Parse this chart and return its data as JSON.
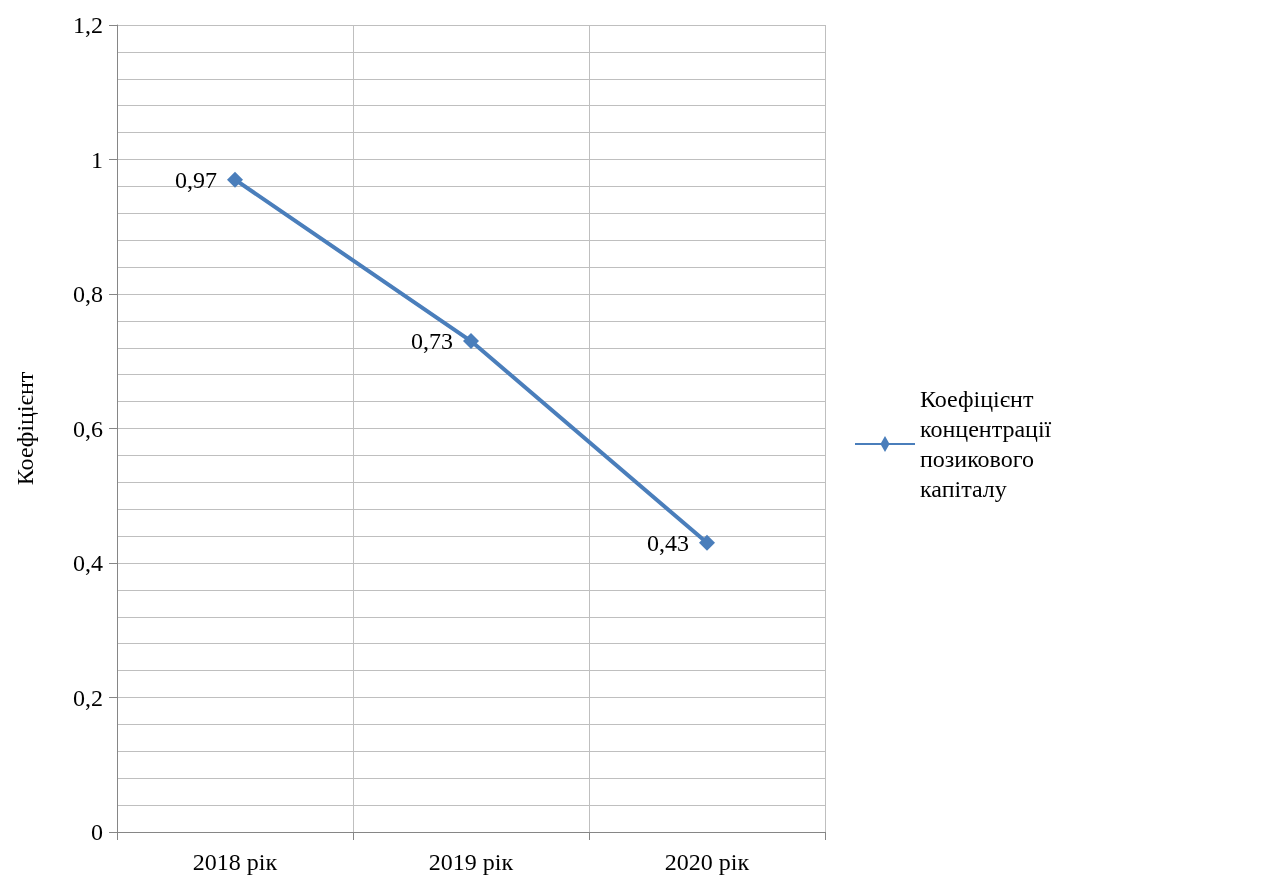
{
  "chart_data": {
    "type": "line",
    "ylabel": "Коефіцієнт",
    "categories": [
      "2018 рік",
      "2019 рік",
      "2020 рік"
    ],
    "series": [
      {
        "name": "Коефіцієнт концентрації позикового капіталу",
        "color": "#4a7ebb",
        "values": [
          0.97,
          0.73,
          0.43
        ]
      }
    ],
    "ylim": [
      0,
      1.2
    ],
    "yticks": [
      0,
      {
        "value": 0.2,
        "label": "0,2"
      },
      {
        "value": 0.4,
        "label": "0,4"
      },
      {
        "value": 0.6,
        "label": "0,6"
      },
      {
        "value": 0.8,
        "label": "0,8"
      },
      1,
      {
        "value": 1.2,
        "label": "1,2"
      }
    ],
    "value_labels": [
      [
        "0,97",
        "0,73",
        "0,43"
      ]
    ],
    "grid": true,
    "legend": "right",
    "marker": "diamond",
    "line_style": "solid"
  }
}
